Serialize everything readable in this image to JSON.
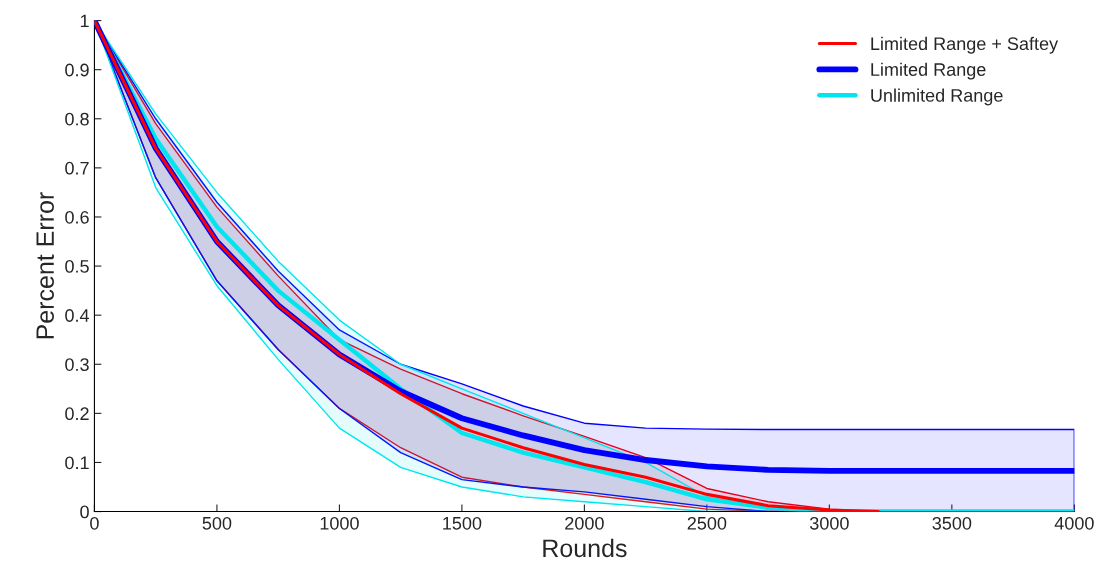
{
  "chart_data": {
    "type": "line",
    "xlabel": "Rounds",
    "ylabel": "Percent Error",
    "x": [
      0,
      250,
      500,
      750,
      1000,
      1250,
      1500,
      1750,
      2000,
      2250,
      2500,
      2750,
      3000,
      3250,
      3500,
      3750,
      4000
    ],
    "series": [
      {
        "name": "Limited Range + Saftey",
        "color": "#ff0000",
        "x": [
          0,
          250,
          500,
          750,
          1000,
          1250,
          1500,
          1750,
          2000,
          2250,
          2500,
          2750,
          3000,
          3200
        ],
        "values": [
          1,
          0.74,
          0.55,
          0.42,
          0.32,
          0.24,
          0.17,
          0.13,
          0.096,
          0.07,
          0.035,
          0.012,
          0.003,
          0
        ],
        "upper": [
          1,
          0.79,
          0.62,
          0.48,
          0.35,
          0.29,
          0.24,
          0.195,
          0.153,
          0.11,
          0.047,
          0.02,
          0.005,
          0
        ],
        "lower": [
          1,
          0.68,
          0.47,
          0.33,
          0.21,
          0.13,
          0.07,
          0.05,
          0.035,
          0.02,
          0.005,
          0,
          0,
          0
        ]
      },
      {
        "name": "Limited Range",
        "color": "#0000ff",
        "values": [
          1,
          0.74,
          0.55,
          0.42,
          0.32,
          0.245,
          0.19,
          0.155,
          0.125,
          0.105,
          0.092,
          0.085,
          0.083,
          0.083,
          0.083,
          0.083,
          0.083
        ],
        "upper": [
          1,
          0.8,
          0.63,
          0.49,
          0.37,
          0.3,
          0.26,
          0.215,
          0.18,
          0.17,
          0.168,
          0.167,
          0.167,
          0.167,
          0.167,
          0.167,
          0.167
        ],
        "lower": [
          1,
          0.68,
          0.47,
          0.33,
          0.21,
          0.12,
          0.065,
          0.05,
          0.04,
          0.025,
          0.01,
          0,
          0,
          0,
          0,
          0,
          0
        ]
      },
      {
        "name": "Unlimited Range",
        "color": "#00e5ee",
        "values": [
          1,
          0.76,
          0.58,
          0.45,
          0.35,
          0.25,
          0.16,
          0.12,
          0.09,
          0.06,
          0.025,
          0.008,
          0,
          0,
          0,
          0,
          0
        ],
        "upper": [
          1,
          0.81,
          0.65,
          0.51,
          0.39,
          0.3,
          0.25,
          0.2,
          0.15,
          0.1,
          0.03,
          0.005,
          null,
          null,
          null,
          null,
          null
        ],
        "lower": [
          1,
          0.66,
          0.46,
          0.31,
          0.17,
          0.09,
          0.05,
          0.03,
          0.02,
          0.01,
          0,
          0,
          null,
          null,
          null,
          null,
          null
        ]
      }
    ],
    "xlim": [
      0,
      4000
    ],
    "ylim": [
      0,
      1
    ],
    "xticks": [
      0,
      500,
      1000,
      1500,
      2000,
      2500,
      3000,
      3500,
      4000
    ],
    "yticks": [
      0,
      0.1,
      0.2,
      0.3,
      0.4,
      0.5,
      0.6,
      0.7,
      0.8,
      0.9,
      1
    ],
    "grid": false,
    "legend": "top right",
    "marker": "none",
    "line_style": "solid"
  }
}
